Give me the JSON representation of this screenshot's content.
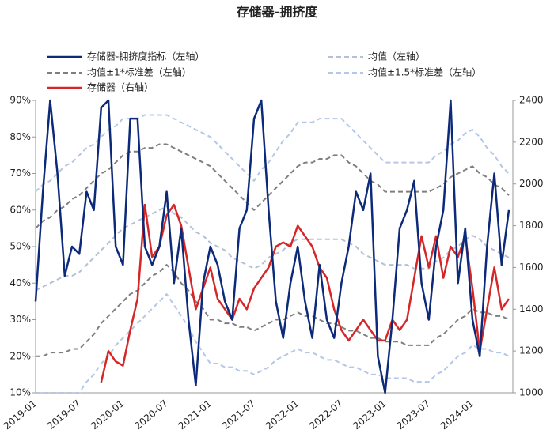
{
  "chart_data": {
    "type": "line",
    "title": "存储器-拥挤度",
    "categories": [
      "2019-01",
      null,
      null,
      null,
      null,
      null,
      "2019-07",
      null,
      null,
      null,
      null,
      null,
      "2020-01",
      null,
      null,
      null,
      null,
      null,
      "2020-07",
      null,
      null,
      null,
      null,
      null,
      "2021-01",
      null,
      null,
      null,
      null,
      null,
      "2021-07",
      null,
      null,
      null,
      null,
      null,
      "2022-01",
      null,
      null,
      null,
      null,
      null,
      "2022-07",
      null,
      null,
      null,
      null,
      null,
      "2023-01",
      null,
      null,
      null,
      null,
      null,
      "2023-07",
      null,
      null,
      null,
      null,
      null,
      "2024-01",
      null,
      null,
      null,
      null,
      null
    ],
    "ylim": [
      10,
      90
    ],
    "yticks": [
      {
        "value": 10,
        "label": "10%"
      },
      {
        "value": 20,
        "label": "20%"
      },
      {
        "value": 30,
        "label": "30%"
      },
      {
        "value": 40,
        "label": "40%"
      },
      {
        "value": 50,
        "label": "50%"
      },
      {
        "value": 60,
        "label": "60%"
      },
      {
        "value": 70,
        "label": "70%"
      },
      {
        "value": 80,
        "label": "80%"
      },
      {
        "value": 90,
        "label": "90%"
      }
    ],
    "y2lim": [
      1000,
      2400
    ],
    "y2ticks": [
      1000,
      1200,
      1400,
      1600,
      1800,
      2000,
      2200,
      2400
    ],
    "series": [
      {
        "name": "存储器-拥挤度指标（左轴）",
        "color": "#0d2a7a",
        "dash": false,
        "values": [
          35,
          65,
          90,
          70,
          42,
          50,
          48,
          65,
          60,
          88,
          90,
          50,
          45,
          85,
          85,
          50,
          45,
          50,
          65,
          40,
          55,
          30,
          12,
          40,
          50,
          45,
          35,
          30,
          55,
          60,
          85,
          90,
          60,
          35,
          25,
          40,
          50,
          35,
          25,
          45,
          30,
          25,
          40,
          50,
          65,
          60,
          70,
          20,
          10,
          30,
          55,
          60,
          68,
          40,
          30,
          50,
          60,
          90,
          40,
          55,
          30,
          20,
          50,
          70,
          45,
          60
        ]
      },
      {
        "name": "均值（左轴）",
        "color": "#b4c0d8",
        "dash": true,
        "values": [
          38,
          39,
          40,
          41,
          42,
          42,
          43,
          45,
          47,
          49,
          51,
          53,
          55,
          56,
          57,
          58,
          59,
          60,
          61,
          59,
          58,
          56,
          54,
          53,
          51,
          50,
          49,
          47,
          46,
          45,
          44,
          45,
          47,
          48,
          49,
          51,
          52,
          52,
          52,
          52,
          52,
          52,
          52,
          51,
          50,
          48,
          47,
          46,
          45,
          45,
          45,
          45,
          44,
          44,
          44,
          46,
          47,
          49,
          50,
          52,
          53,
          52,
          50,
          49,
          48,
          47
        ]
      },
      {
        "name": "均值±1*标准差（左轴）",
        "color": "#7f7f7f",
        "dash": true,
        "values": [
          55,
          57,
          58,
          60,
          61,
          63,
          64,
          66,
          68,
          70,
          71,
          73,
          75,
          76,
          76,
          77,
          77,
          78,
          78,
          77,
          76,
          75,
          74,
          73,
          72,
          70,
          68,
          66,
          64,
          62,
          60,
          62,
          64,
          66,
          68,
          70,
          72,
          73,
          73,
          74,
          74,
          75,
          75,
          73,
          72,
          70,
          68,
          67,
          65,
          65,
          65,
          65,
          65,
          65,
          65,
          66,
          67,
          69,
          70,
          71,
          72,
          70,
          69,
          67,
          66,
          64
        ],
        "lower": [
          20,
          20,
          21,
          21,
          21,
          22,
          22,
          24,
          26,
          29,
          31,
          33,
          35,
          37,
          38,
          40,
          42,
          43,
          45,
          43,
          40,
          38,
          35,
          33,
          30,
          30,
          29,
          29,
          28,
          28,
          27,
          28,
          29,
          30,
          30,
          31,
          32,
          31,
          31,
          30,
          29,
          29,
          28,
          27,
          27,
          26,
          25,
          25,
          24,
          24,
          24,
          23,
          23,
          23,
          23,
          25,
          26,
          28,
          30,
          31,
          33,
          32,
          32,
          31,
          31,
          30
        ]
      },
      {
        "name": "均值±1.5*标准差（左轴）",
        "color": "#b4c7e7",
        "dash": true,
        "values": [
          65,
          67,
          68,
          70,
          72,
          73,
          75,
          77,
          78,
          80,
          82,
          83,
          85,
          85,
          85,
          86,
          86,
          86,
          86,
          85,
          84,
          83,
          82,
          81,
          80,
          78,
          76,
          74,
          72,
          70,
          68,
          71,
          73,
          76,
          79,
          81,
          84,
          84,
          84,
          85,
          85,
          85,
          85,
          83,
          81,
          79,
          77,
          75,
          73,
          73,
          73,
          73,
          73,
          73,
          73,
          75,
          76,
          78,
          79,
          81,
          82,
          80,
          77,
          75,
          72,
          70
        ],
        "lower": [
          10,
          10,
          10,
          10,
          10,
          10,
          10,
          13,
          15,
          18,
          20,
          23,
          25,
          27,
          29,
          31,
          33,
          35,
          37,
          34,
          31,
          28,
          24,
          21,
          18,
          18,
          17,
          17,
          16,
          16,
          15,
          16,
          17,
          19,
          20,
          21,
          22,
          21,
          21,
          20,
          19,
          19,
          18,
          17,
          17,
          16,
          15,
          15,
          14,
          14,
          14,
          14,
          13,
          13,
          13,
          15,
          16,
          18,
          20,
          21,
          23,
          22,
          22,
          21,
          21,
          20
        ]
      },
      {
        "name": "存储器（右轴）",
        "color": "#d62728",
        "dash": false,
        "axis": "y2",
        "values": [
          null,
          null,
          null,
          null,
          null,
          null,
          null,
          null,
          null,
          1050,
          1200,
          1150,
          1130,
          1300,
          1450,
          1900,
          1650,
          1700,
          1850,
          1900,
          1800,
          1600,
          1400,
          1500,
          1600,
          1450,
          1400,
          1350,
          1450,
          1400,
          1500,
          1550,
          1600,
          1700,
          1720,
          1700,
          1800,
          1750,
          1700,
          1600,
          1550,
          1400,
          1300,
          1250,
          1300,
          1350,
          1300,
          1250,
          1250,
          1350,
          1300,
          1350,
          1550,
          1750,
          1600,
          1750,
          1550,
          1700,
          1650,
          1750,
          1500,
          1200,
          1400,
          1600,
          1400,
          1450
        ]
      }
    ]
  }
}
